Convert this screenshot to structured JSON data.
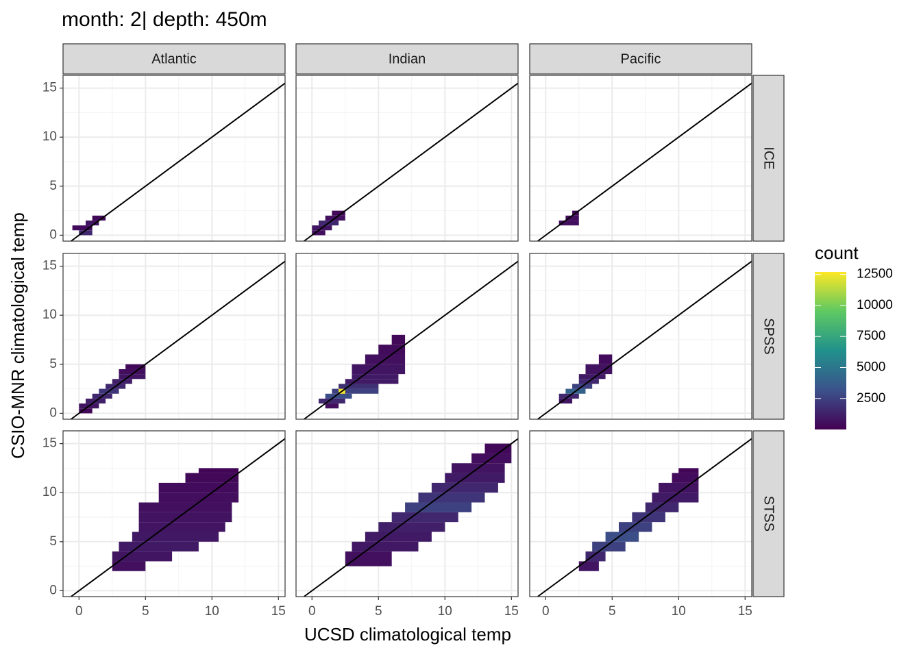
{
  "chart_data": {
    "type": "bin2d",
    "title": "month: 2| depth: 450m",
    "x_label": "UCSD climatological temp",
    "y_label": "CSIO-MNR climatological temp",
    "legend_title": "count",
    "columns": [
      "Atlantic",
      "Indian",
      "Pacific"
    ],
    "rows": [
      "ICE",
      "SPSS",
      "STSS"
    ],
    "xlim": [
      -1.2,
      15.5
    ],
    "ylim": [
      -0.6,
      16.3
    ],
    "xticks": [
      0,
      5,
      10,
      15
    ],
    "yticks": [
      0,
      5,
      10,
      15
    ],
    "grid": true,
    "abline": {
      "slope": 1,
      "intercept": 0,
      "color": "#000000"
    },
    "count_lim": [
      1,
      12700
    ],
    "count_ticks": [
      2500,
      5000,
      7500,
      10000,
      12500
    ],
    "tiles": [
      [
        [
          [
            -0.5,
            1,
            0.5,
            1,
            400
          ],
          [
            0,
            1,
            0,
            0.5,
            1500
          ],
          [
            0.5,
            1.5,
            1,
            1.5,
            800
          ],
          [
            1,
            2,
            1.5,
            2,
            300
          ]
        ],
        [
          [
            0,
            1,
            0,
            0.5,
            500
          ],
          [
            0,
            1.5,
            0.5,
            1,
            800
          ],
          [
            0.5,
            2,
            1,
            1.5,
            1500
          ],
          [
            1,
            2.5,
            1.5,
            2,
            600
          ],
          [
            1.5,
            2.5,
            2,
            2.5,
            300
          ]
        ],
        [
          [
            1,
            2.5,
            1,
            1.5,
            600
          ],
          [
            1.5,
            2.5,
            1.5,
            2,
            400
          ],
          [
            2,
            2.5,
            2,
            2.5,
            200
          ]
        ]
      ],
      [
        [
          [
            0,
            1,
            0,
            0.5,
            300
          ],
          [
            0,
            1.5,
            0.5,
            1,
            800
          ],
          [
            0.5,
            2,
            1,
            1.5,
            1200
          ],
          [
            1,
            2.5,
            1.5,
            2,
            1500
          ],
          [
            1.5,
            3,
            2,
            2.5,
            2000
          ],
          [
            2,
            3.5,
            2.5,
            3,
            1500
          ],
          [
            2.5,
            4,
            3,
            3.5,
            1200
          ],
          [
            3,
            5,
            3.5,
            4,
            800
          ],
          [
            3,
            5,
            4,
            4.5,
            500
          ],
          [
            3.5,
            5,
            4.5,
            5,
            300
          ]
        ],
        [
          [
            1,
            2,
            0.5,
            1,
            500
          ],
          [
            0.5,
            2.5,
            1,
            1.5,
            1500
          ],
          [
            1,
            3,
            1.5,
            2,
            3000
          ],
          [
            1.5,
            5,
            2,
            2.5,
            2500
          ],
          [
            2,
            5,
            2.5,
            3,
            1800
          ],
          [
            2.5,
            6.5,
            3,
            3.5,
            1000
          ],
          [
            3,
            6.5,
            3.5,
            4,
            1000
          ],
          [
            3,
            7,
            4,
            5,
            800
          ],
          [
            4,
            7,
            5,
            6,
            600
          ],
          [
            5,
            7,
            6,
            7,
            400
          ],
          [
            6,
            7,
            7,
            8,
            300
          ],
          [
            2,
            2.5,
            2,
            2.5,
            12500
          ]
        ],
        [
          [
            1,
            2,
            1,
            1.5,
            800
          ],
          [
            1,
            2.5,
            1.5,
            2,
            1500
          ],
          [
            1.5,
            3,
            2,
            2.5,
            4000
          ],
          [
            2,
            3.5,
            2.5,
            3,
            2500
          ],
          [
            2.5,
            4,
            3,
            3.5,
            1500
          ],
          [
            2.5,
            4.5,
            3.5,
            4,
            1000
          ],
          [
            3,
            5,
            4,
            5,
            700
          ],
          [
            4,
            5,
            5,
            6,
            400
          ]
        ]
      ],
      [
        [
          [
            2.5,
            5,
            2,
            3,
            600
          ],
          [
            2.5,
            7,
            3,
            4,
            800
          ],
          [
            3,
            9,
            4,
            5,
            1000
          ],
          [
            4,
            10.5,
            5,
            6,
            900
          ],
          [
            4.5,
            11,
            6,
            7,
            800
          ],
          [
            4.5,
            11.5,
            7,
            8,
            700
          ],
          [
            4.5,
            11.5,
            8,
            9,
            600
          ],
          [
            6,
            12,
            9,
            10,
            500
          ],
          [
            6,
            12,
            10,
            11,
            400
          ],
          [
            8,
            12,
            11,
            12,
            300
          ],
          [
            9,
            12,
            12,
            12.5,
            200
          ]
        ],
        [
          [
            2.5,
            6,
            2.5,
            4,
            600
          ],
          [
            3,
            8,
            4,
            5,
            900
          ],
          [
            4,
            9,
            5,
            6,
            1000
          ],
          [
            5,
            10,
            6,
            7,
            1200
          ],
          [
            6,
            11,
            7,
            8,
            1500
          ],
          [
            7,
            12,
            8,
            9,
            2500
          ],
          [
            8,
            13,
            9,
            10,
            2000
          ],
          [
            9,
            14,
            10,
            11,
            1500
          ],
          [
            10,
            14.5,
            11,
            12,
            1000
          ],
          [
            10.5,
            14.5,
            12,
            13,
            700
          ],
          [
            12,
            15,
            13,
            14,
            500
          ],
          [
            13,
            15,
            14,
            15,
            300
          ]
        ],
        [
          [
            2.5,
            4,
            2,
            3,
            800
          ],
          [
            3,
            4.5,
            3,
            4,
            1500
          ],
          [
            3.5,
            6,
            4,
            5,
            2500
          ],
          [
            4.5,
            7,
            5,
            6,
            3000
          ],
          [
            5.5,
            8,
            6,
            7,
            2500
          ],
          [
            6.5,
            9,
            7,
            8,
            2000
          ],
          [
            7.5,
            10,
            8,
            9,
            1500
          ],
          [
            8,
            11.5,
            9,
            10,
            1000
          ],
          [
            8.5,
            11.5,
            10,
            11,
            700
          ],
          [
            9.5,
            11.5,
            11,
            12,
            400
          ],
          [
            10,
            11.5,
            12,
            12.5,
            200
          ]
        ]
      ]
    ]
  }
}
